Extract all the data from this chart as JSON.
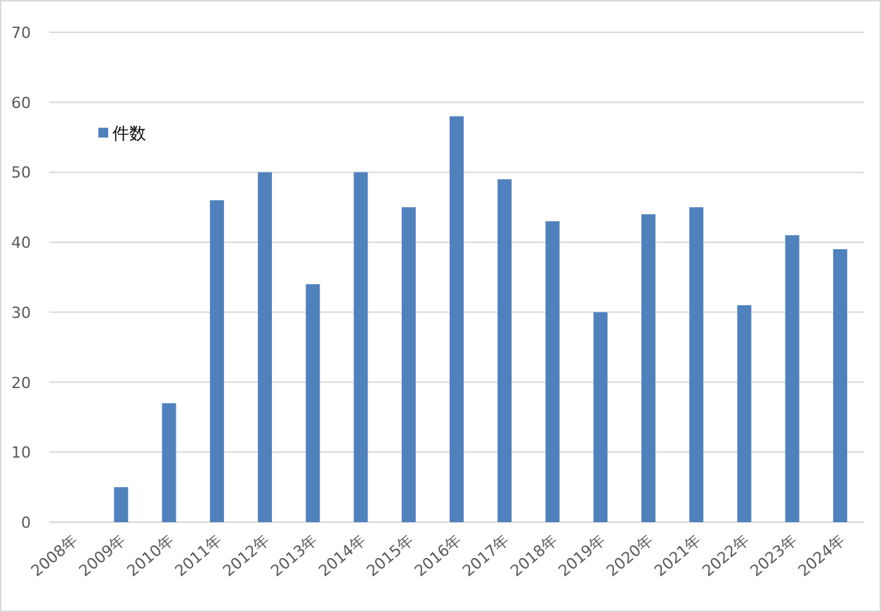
{
  "chart_data": {
    "type": "bar",
    "categories": [
      "2008年",
      "2009年",
      "2010年",
      "2011年",
      "2012年",
      "2013年",
      "2014年",
      "2015年",
      "2016年",
      "2017年",
      "2018年",
      "2019年",
      "2020年",
      "2021年",
      "2022年",
      "2023年",
      "2024年"
    ],
    "series": [
      {
        "name": "件数",
        "color": "#4f81bd",
        "values": [
          0,
          5,
          17,
          46,
          50,
          34,
          50,
          45,
          58,
          49,
          43,
          30,
          44,
          45,
          31,
          41,
          39
        ]
      }
    ],
    "ylim": [
      0,
      70
    ],
    "yticks": [
      0,
      10,
      20,
      30,
      40,
      50,
      60,
      70
    ],
    "grid": "y",
    "legend": "top left"
  }
}
